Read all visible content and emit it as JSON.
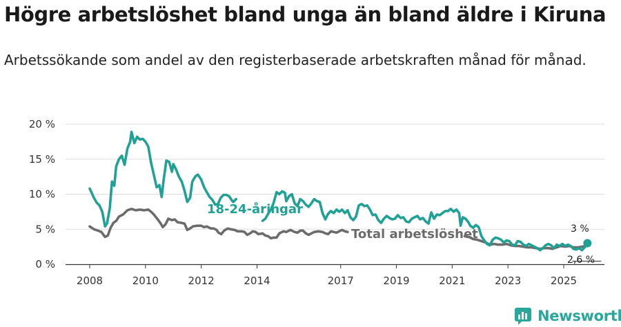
{
  "header": {
    "title": "Högre arbetslöshet bland unga än bland äldre i Kiruna",
    "subtitle": "Arbetssökande som andel av den registerbaserade arbetskraften månad för månad."
  },
  "brand": {
    "name": "Newsworthy"
  },
  "colors": {
    "youth": "#21a195",
    "total": "#6b6b6b",
    "grid": "#dddddd",
    "axis": "#333333",
    "brand": "#2aa79b"
  },
  "chart_data": {
    "type": "line",
    "title": "Högre arbetslöshet bland unga än bland äldre i Kiruna",
    "xlabel": "",
    "ylabel": "",
    "xlim": [
      2008.0,
      2025.9
    ],
    "ylim": [
      0,
      20
    ],
    "yticks": [
      {
        "value": 0,
        "label": "0 %"
      },
      {
        "value": 5,
        "label": "5 %"
      },
      {
        "value": 10,
        "label": "10 %"
      },
      {
        "value": 15,
        "label": "15 %"
      },
      {
        "value": 20,
        "label": "20 %"
      }
    ],
    "xticks": [
      {
        "value": 2008,
        "label": "2008"
      },
      {
        "value": 2010,
        "label": "2010"
      },
      {
        "value": 2012,
        "label": "2012"
      },
      {
        "value": 2014,
        "label": "2014"
      },
      {
        "value": 2017,
        "label": "2017"
      },
      {
        "value": 2019,
        "label": "2019"
      },
      {
        "value": 2021,
        "label": "2021"
      },
      {
        "value": 2023,
        "label": "2023"
      },
      {
        "value": 2025,
        "label": "2025"
      }
    ],
    "grid": true,
    "series": [
      {
        "name": "18-24-åringar",
        "end_label": "3 %",
        "points": [
          [
            2008.0,
            10.8
          ],
          [
            2008.15,
            9.5
          ],
          [
            2008.25,
            8.8
          ],
          [
            2008.35,
            8.4
          ],
          [
            2008.45,
            7.5
          ],
          [
            2008.55,
            5.4
          ],
          [
            2008.62,
            5.8
          ],
          [
            2008.72,
            8.0
          ],
          [
            2008.8,
            11.8
          ],
          [
            2008.88,
            11.2
          ],
          [
            2008.95,
            14.0
          ],
          [
            2009.05,
            15.0
          ],
          [
            2009.15,
            15.5
          ],
          [
            2009.25,
            14.2
          ],
          [
            2009.35,
            16.5
          ],
          [
            2009.45,
            17.5
          ],
          [
            2009.5,
            18.9
          ],
          [
            2009.6,
            17.3
          ],
          [
            2009.7,
            18.2
          ],
          [
            2009.8,
            17.8
          ],
          [
            2009.9,
            17.9
          ],
          [
            2010.0,
            17.5
          ],
          [
            2010.1,
            16.8
          ],
          [
            2010.2,
            14.5
          ],
          [
            2010.3,
            12.8
          ],
          [
            2010.4,
            11.0
          ],
          [
            2010.5,
            11.3
          ],
          [
            2010.58,
            9.6
          ],
          [
            2010.65,
            12.0
          ],
          [
            2010.75,
            14.8
          ],
          [
            2010.85,
            14.6
          ],
          [
            2010.95,
            13.2
          ],
          [
            2011.0,
            14.3
          ],
          [
            2011.1,
            13.5
          ],
          [
            2011.2,
            12.5
          ],
          [
            2011.3,
            11.8
          ],
          [
            2011.4,
            10.5
          ],
          [
            2011.5,
            8.9
          ],
          [
            2011.6,
            9.5
          ],
          [
            2011.68,
            11.8
          ],
          [
            2011.8,
            12.6
          ],
          [
            2011.88,
            12.8
          ],
          [
            2012.0,
            12.1
          ],
          [
            2012.1,
            11.0
          ],
          [
            2012.2,
            10.3
          ],
          [
            2012.3,
            9.6
          ],
          [
            2012.4,
            9.2
          ],
          [
            2012.5,
            8.5
          ],
          [
            2012.6,
            8.6
          ],
          [
            2012.7,
            9.5
          ],
          [
            2012.8,
            9.9
          ],
          [
            2012.9,
            9.9
          ],
          [
            2013.0,
            9.7
          ],
          [
            2013.1,
            9.1
          ],
          [
            2013.15,
            8.9
          ],
          [
            2013.25,
            9.3
          ]
        ],
        "points_b": [
          [
            2014.2,
            6.2
          ],
          [
            2014.3,
            6.5
          ],
          [
            2014.4,
            7.2
          ],
          [
            2014.5,
            7.8
          ],
          [
            2014.6,
            8.8
          ],
          [
            2014.7,
            10.3
          ],
          [
            2014.8,
            10.0
          ],
          [
            2014.9,
            10.4
          ],
          [
            2015.0,
            10.2
          ],
          [
            2015.05,
            9.0
          ],
          [
            2015.15,
            9.7
          ],
          [
            2015.25,
            10.0
          ],
          [
            2015.35,
            8.7
          ],
          [
            2015.45,
            8.3
          ],
          [
            2015.55,
            9.3
          ],
          [
            2015.65,
            9.0
          ],
          [
            2015.75,
            8.5
          ],
          [
            2015.85,
            8.2
          ],
          [
            2015.95,
            8.7
          ],
          [
            2016.05,
            9.3
          ],
          [
            2016.15,
            9.0
          ],
          [
            2016.25,
            8.9
          ],
          [
            2016.35,
            7.3
          ],
          [
            2016.45,
            6.4
          ],
          [
            2016.55,
            7.2
          ],
          [
            2016.65,
            7.6
          ],
          [
            2016.75,
            7.3
          ],
          [
            2016.85,
            7.8
          ],
          [
            2016.95,
            7.5
          ],
          [
            2017.05,
            7.8
          ],
          [
            2017.15,
            7.3
          ],
          [
            2017.25,
            7.7
          ],
          [
            2017.35,
            6.7
          ],
          [
            2017.45,
            6.3
          ],
          [
            2017.55,
            6.8
          ],
          [
            2017.65,
            8.4
          ],
          [
            2017.75,
            8.6
          ],
          [
            2017.85,
            8.3
          ],
          [
            2017.95,
            8.4
          ],
          [
            2018.05,
            7.8
          ],
          [
            2018.15,
            7.0
          ],
          [
            2018.25,
            7.1
          ],
          [
            2018.35,
            6.3
          ],
          [
            2018.45,
            5.9
          ],
          [
            2018.55,
            6.5
          ],
          [
            2018.65,
            6.9
          ],
          [
            2018.75,
            6.6
          ],
          [
            2018.85,
            6.4
          ],
          [
            2018.95,
            6.5
          ],
          [
            2019.05,
            7.0
          ],
          [
            2019.15,
            6.6
          ],
          [
            2019.25,
            6.7
          ],
          [
            2019.35,
            6.1
          ],
          [
            2019.45,
            6.0
          ],
          [
            2019.55,
            6.5
          ],
          [
            2019.65,
            6.7
          ],
          [
            2019.75,
            6.9
          ],
          [
            2019.85,
            6.4
          ],
          [
            2019.95,
            6.6
          ],
          [
            2020.05,
            6.1
          ],
          [
            2020.15,
            5.8
          ],
          [
            2020.25,
            7.4
          ],
          [
            2020.35,
            6.5
          ],
          [
            2020.45,
            7.1
          ],
          [
            2020.55,
            7.0
          ],
          [
            2020.65,
            7.3
          ],
          [
            2020.75,
            7.6
          ],
          [
            2020.85,
            7.6
          ],
          [
            2020.95,
            7.9
          ],
          [
            2021.05,
            7.5
          ],
          [
            2021.15,
            7.8
          ],
          [
            2021.25,
            7.3
          ],
          [
            2021.3,
            5.5
          ],
          [
            2021.38,
            6.7
          ],
          [
            2021.48,
            6.5
          ],
          [
            2021.58,
            6.0
          ],
          [
            2021.65,
            5.5
          ],
          [
            2021.75,
            5.2
          ],
          [
            2021.85,
            5.6
          ],
          [
            2021.95,
            5.3
          ],
          [
            2022.05,
            4.0
          ],
          [
            2022.15,
            3.4
          ],
          [
            2022.25,
            2.9
          ],
          [
            2022.35,
            2.7
          ],
          [
            2022.45,
            3.5
          ],
          [
            2022.55,
            3.8
          ],
          [
            2022.65,
            3.7
          ],
          [
            2022.75,
            3.5
          ],
          [
            2022.85,
            3.1
          ],
          [
            2022.95,
            3.4
          ],
          [
            2023.05,
            3.3
          ],
          [
            2023.15,
            2.8
          ],
          [
            2023.25,
            2.7
          ],
          [
            2023.35,
            3.3
          ],
          [
            2023.45,
            3.2
          ],
          [
            2023.55,
            2.8
          ],
          [
            2023.65,
            2.6
          ],
          [
            2023.75,
            2.9
          ],
          [
            2023.85,
            2.7
          ],
          [
            2023.95,
            2.5
          ],
          [
            2024.05,
            2.3
          ],
          [
            2024.15,
            2.0
          ],
          [
            2024.25,
            2.3
          ],
          [
            2024.35,
            2.7
          ],
          [
            2024.45,
            2.9
          ],
          [
            2024.55,
            2.7
          ],
          [
            2024.65,
            2.3
          ],
          [
            2024.75,
            2.8
          ],
          [
            2024.85,
            2.6
          ],
          [
            2024.95,
            2.9
          ],
          [
            2025.05,
            2.6
          ],
          [
            2025.15,
            2.8
          ],
          [
            2025.25,
            2.6
          ],
          [
            2025.35,
            2.2
          ],
          [
            2025.45,
            2.1
          ],
          [
            2025.55,
            2.3
          ],
          [
            2025.65,
            2.0
          ],
          [
            2025.75,
            2.4
          ],
          [
            2025.85,
            3.0
          ]
        ]
      },
      {
        "name": "Total arbetslöshet",
        "end_label": "2,6 %",
        "points": [
          [
            2008.0,
            5.4
          ],
          [
            2008.15,
            5.0
          ],
          [
            2008.3,
            4.8
          ],
          [
            2008.42,
            4.6
          ],
          [
            2008.55,
            3.9
          ],
          [
            2008.65,
            4.1
          ],
          [
            2008.75,
            5.2
          ],
          [
            2008.85,
            5.9
          ],
          [
            2008.95,
            6.2
          ],
          [
            2009.05,
            6.8
          ],
          [
            2009.2,
            7.1
          ],
          [
            2009.35,
            7.7
          ],
          [
            2009.5,
            7.9
          ],
          [
            2009.65,
            7.7
          ],
          [
            2009.8,
            7.8
          ],
          [
            2009.95,
            7.7
          ],
          [
            2010.1,
            7.8
          ],
          [
            2010.2,
            7.5
          ],
          [
            2010.3,
            7.1
          ],
          [
            2010.42,
            6.5
          ],
          [
            2010.55,
            5.8
          ],
          [
            2010.62,
            5.3
          ],
          [
            2010.72,
            5.7
          ],
          [
            2010.82,
            6.5
          ],
          [
            2010.95,
            6.3
          ],
          [
            2011.05,
            6.4
          ],
          [
            2011.15,
            6.0
          ],
          [
            2011.3,
            5.9
          ],
          [
            2011.4,
            5.8
          ],
          [
            2011.5,
            4.9
          ],
          [
            2011.6,
            5.1
          ],
          [
            2011.7,
            5.4
          ],
          [
            2011.85,
            5.5
          ],
          [
            2012.0,
            5.5
          ],
          [
            2012.1,
            5.3
          ],
          [
            2012.2,
            5.4
          ],
          [
            2012.35,
            5.1
          ],
          [
            2012.45,
            5.1
          ],
          [
            2012.55,
            4.9
          ],
          [
            2012.62,
            4.5
          ],
          [
            2012.72,
            4.3
          ],
          [
            2012.82,
            4.8
          ],
          [
            2012.95,
            5.1
          ],
          [
            2013.05,
            5.0
          ],
          [
            2013.2,
            4.9
          ],
          [
            2013.3,
            4.7
          ],
          [
            2013.45,
            4.7
          ],
          [
            2013.55,
            4.6
          ],
          [
            2013.65,
            4.2
          ],
          [
            2013.75,
            4.4
          ],
          [
            2013.85,
            4.7
          ],
          [
            2013.95,
            4.6
          ],
          [
            2014.05,
            4.3
          ],
          [
            2014.2,
            4.4
          ],
          [
            2014.3,
            4.1
          ],
          [
            2014.4,
            4.0
          ],
          [
            2014.5,
            3.7
          ],
          [
            2014.6,
            3.8
          ],
          [
            2014.7,
            3.8
          ],
          [
            2014.8,
            4.4
          ],
          [
            2014.95,
            4.7
          ],
          [
            2015.05,
            4.6
          ],
          [
            2015.2,
            4.9
          ],
          [
            2015.35,
            4.6
          ],
          [
            2015.45,
            4.5
          ],
          [
            2015.55,
            4.8
          ],
          [
            2015.65,
            4.8
          ],
          [
            2015.75,
            4.4
          ],
          [
            2015.85,
            4.2
          ],
          [
            2015.95,
            4.4
          ],
          [
            2016.05,
            4.6
          ],
          [
            2016.2,
            4.7
          ],
          [
            2016.35,
            4.6
          ],
          [
            2016.45,
            4.4
          ],
          [
            2016.55,
            4.3
          ],
          [
            2016.65,
            4.7
          ],
          [
            2016.75,
            4.6
          ],
          [
            2016.85,
            4.5
          ],
          [
            2016.95,
            4.7
          ],
          [
            2017.05,
            4.9
          ],
          [
            2017.15,
            4.7
          ],
          [
            2017.25,
            4.6
          ]
        ],
        "points_b": [
          [
            2021.45,
            4.0
          ],
          [
            2021.6,
            3.9
          ],
          [
            2021.75,
            3.6
          ],
          [
            2021.9,
            3.5
          ],
          [
            2022.05,
            3.3
          ],
          [
            2022.2,
            3.1
          ],
          [
            2022.35,
            2.8
          ],
          [
            2022.5,
            2.9
          ],
          [
            2022.65,
            2.8
          ],
          [
            2022.8,
            2.8
          ],
          [
            2022.95,
            2.9
          ],
          [
            2023.1,
            2.7
          ],
          [
            2023.25,
            2.6
          ],
          [
            2023.4,
            2.6
          ],
          [
            2023.55,
            2.5
          ],
          [
            2023.7,
            2.4
          ],
          [
            2023.85,
            2.4
          ],
          [
            2024.0,
            2.3
          ],
          [
            2024.15,
            2.2
          ],
          [
            2024.3,
            2.3
          ],
          [
            2024.45,
            2.3
          ],
          [
            2024.6,
            2.2
          ],
          [
            2024.75,
            2.4
          ],
          [
            2024.9,
            2.6
          ],
          [
            2025.05,
            2.5
          ],
          [
            2025.2,
            2.6
          ],
          [
            2025.35,
            2.4
          ],
          [
            2025.5,
            2.4
          ],
          [
            2025.65,
            2.5
          ],
          [
            2025.8,
            2.6
          ],
          [
            2025.85,
            2.6
          ]
        ]
      }
    ]
  }
}
